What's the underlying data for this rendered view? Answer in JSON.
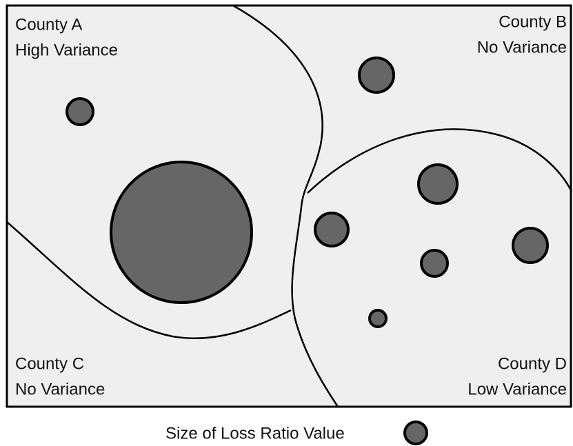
{
  "regions": [
    {
      "name": "County A",
      "label": "High Variance"
    },
    {
      "name": "County B",
      "label": "No Variance"
    },
    {
      "name": "County C",
      "label": "No Variance"
    },
    {
      "name": "County D",
      "label": "Low Variance"
    }
  ],
  "legend": {
    "label": "Size of Loss Ratio Value"
  }
}
